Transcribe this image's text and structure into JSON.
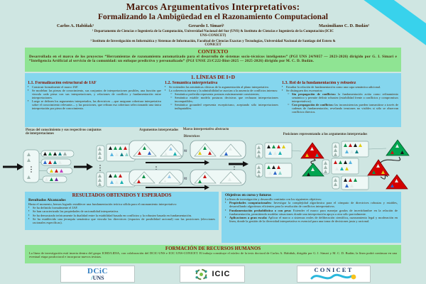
{
  "colors": {
    "page_bg": "#cfe6e2",
    "band_green": "#8fe493",
    "band_blue": "#85d6ee",
    "ribbon_cyan": "#38d2ec",
    "heading_red": "#8b1500",
    "body_brown": "#4e2a0c",
    "triangle_red": "#d40000",
    "triangle_green": "#00a550"
  },
  "header": {
    "title_line1": "Marcos Argumentativos Interpretativos:",
    "title_line2": "Formalizando la Ambigüedad en el Razonamiento Computacional",
    "authors": [
      "Carlos A. Habiñak¹",
      "Gerardo I. Simari¹",
      "Maximiliano C. D. Budán²"
    ],
    "affiliation1": "¹ Departamento de Ciencias e Ingeniería de la Computación, Universidad Nacional del Sur (UNS) & Instituto de Ciencias e Ingeniería de la Computación (ICIC UNS-CONICET)",
    "affiliation2": "² Instituto de Investigación en Informática y Sistemas de Información, Facultad de Ciencias Exactas y Tecnologías, Universidad Nacional de Santiago del Estero & CONICET",
    "emails": "{carlos.habinak, gis}@cs.uns.edu.ar, mcdb@unse.edu.ar"
  },
  "contexto": {
    "title": "CONTEXTO",
    "body": "Desarrollada en el marco de los proyectos “Herramientas de razonamiento automatizado para el desarrollo de sistemas socio-técnicos inteligentes” (PGI UNS 24/N057 — 2023-2026) dirigido por G. I. Simari e “Inteligencia Artificial al servicio de la comunidad: un enfoque predictivo y personalizado” (PGI UNSE 23/C222-Bint-2025 — 2025-2026) dirigido por M. C. D. Budán."
  },
  "lineas": {
    "title": "1. LÍNEAS DE I+D",
    "col1": {
      "title": "1.1. Formalización estructural de IAF",
      "bullets": [
        "Construir formalmente el marco IAF.",
        "Se modelan: las piezas de conocimiento, sus conjuntos de interpretaciones posibles, una función que vincula cada pieza con sus interpretaciones, y relaciones de conflicto y fundamentación entre interpretaciones.",
        "Luego se definen los argumentos interpretados, las directrices —que aseguran cobertura interpretativa sobre el conocimiento relevante— y las posiciones, que refinan esa cobertura seleccionando una única interpretación por pieza de conocimiento."
      ]
    },
    "col2": {
      "title": "1.2. Semántica interpretativa",
      "bullets": [
        "Se extienden las semánticas clásicas de la argumentación al plano interpretativo.",
        "La coherencia interna y la admisibilidad se asocian a la ausencia de conflictos internos:"
      ],
      "subbullets": [
        "Semántica preferida representa posturas máximamente consistentes;",
        "Semántica estable modela posturas decisivas que rechazan interpretaciones incompatibles;",
        "Semántica grounded representa escepticismo, aceptando sólo interpretaciones indisputables."
      ]
    },
    "col3": {
      "title": "1.3. Rol de la fundamentación y robustez",
      "bullets": [
        "Estudiar la relación de fundamentación como una capa semántica adicional.",
        "Se distinguen dos escenarios:"
      ],
      "subbullets": [
        {
          "lead": "Sin propagación de conflictos:",
          "text": "la fundamentación actúa como refinamiento semántico y permite definir robustez (estabilidad frente a conflictos y compromisos interpretativos)."
        },
        {
          "lead": "Con propagación de conflictos:",
          "text": "las inconsistencias pueden transmitirse a través de cadenas de fundamentación, revelando tensiones no visibles si sólo se observan conflictos directos."
        }
      ]
    }
  },
  "diagram": {
    "label_piezas": "Piezas del conocimiento y sus respectivos conjuntos de interpretaciones",
    "label_argumentos": "Argumentos interpretados",
    "label_marco": "Marco interpretativo abstracto",
    "label_directrices": "Directrices",
    "label_posiciones": "Posiciones representando a los argumentos interpretados"
  },
  "resultados": {
    "title": "RESULTADOS OBTENIDOS Y ESPERADOS",
    "subtitle": "Resultados Alcanzados",
    "intro": "Hasta el momento, hemos logrado establecer una fundamentación teórica sólida para el razonamiento interpretativo:",
    "bullets": [
      "Se ha definido formalmente el IAF.",
      "Se han caracterizado las propiedades de racionalidad interpretativa.",
      "Se ha demostrado teóricamente la dualidad entre la estabilidad basada en conflictos y la robustez basada en fundamentación.",
      "Se ha establecido una jerarquía semántica que vincula las directrices (espacios de posibilidad racional) con las posiciones (elecciones racionales específicas)."
    ]
  },
  "objetivos": {
    "title": "Objetivos en curso y futuros",
    "intro": "La línea de investigación y desarrollo continúa con los siguientes objetivos:",
    "bullets": [
      {
        "lead": "Propiedades computacionales:",
        "text": "Investigar la complejidad algorítmica para el cómputo de directrices robustas y estables, desarrollando algoritmos eficientes para la resolución de conflictos interpretativos."
      },
      {
        "lead": "Fundamentación probabilística o con peso:",
        "text": "Extender el marco para manejar grados de incertidumbre en la relación de fundamentación, permitiendo modelar situaciones donde una interpretación apoya a otra sólo parcialmente."
      },
      {
        "lead": "Aplicaciones a gran escala:",
        "text": "Aplicar el marco a sistemas reales de deliberación científica, razonamiento legal y moderación en línea, donde la gestión de la diversidad interpretativa es esencial para una toma de decisiones justa y racional."
      }
    ]
  },
  "formacion": {
    "title": "FORMACIÓN DE RECURSOS HUMANOS",
    "body": "La línea de investigación está inserta dentro del grupo ICBD/LIDIA, con colaboración del DCIC-UNS e ICIC UNS-CONICET. El trabajo constituye el núcleo de la tesis doctoral de Carlos A. Habiñak, dirigida por G. I. Simari y M. C. D. Budán; la línea podrá continuar en una eventual etapa posdoctoral e incorporar nuevos tesistas."
  },
  "footer": {
    "dcic_line1": "DCiC",
    "dcic_slash": "/",
    "dcic_line2": "UNS",
    "icic": "ICIC",
    "conicet": "CONICET"
  }
}
